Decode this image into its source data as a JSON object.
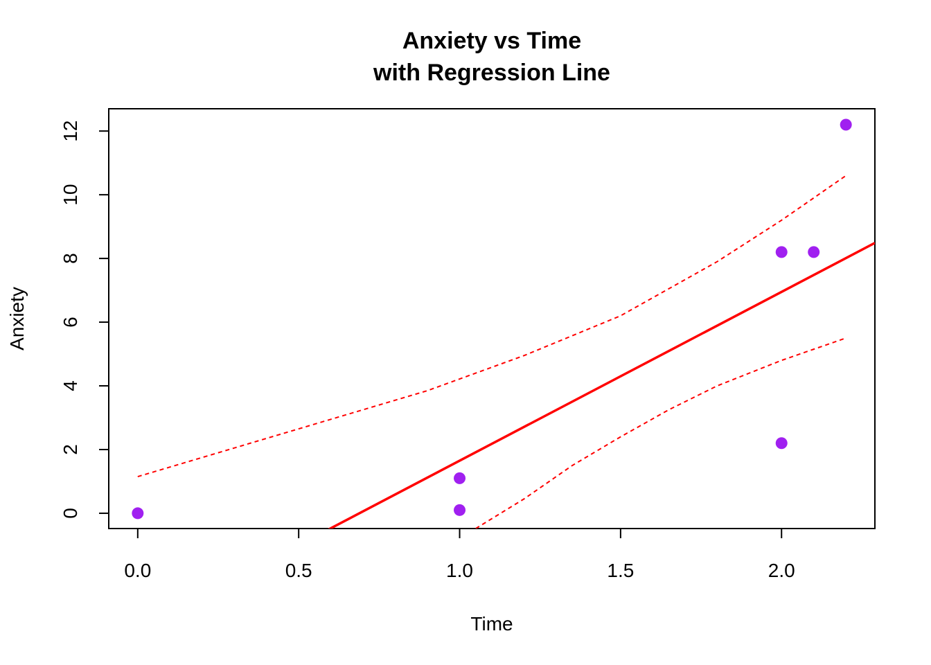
{
  "chart_data": {
    "type": "scatter",
    "title": [
      "Anxiety vs Time",
      "with Regression Line"
    ],
    "xlabel": "Time",
    "ylabel": "Anxiety",
    "xlim": [
      -0.09,
      2.29
    ],
    "ylim": [
      -0.48,
      12.7
    ],
    "x_ticks": [
      "0.0",
      "0.5",
      "1.0",
      "1.5",
      "2.0"
    ],
    "x_tick_values": [
      0,
      0.5,
      1.0,
      1.5,
      2.0
    ],
    "y_ticks": [
      "0",
      "2",
      "4",
      "6",
      "8",
      "10",
      "12"
    ],
    "y_tick_values": [
      0,
      2,
      4,
      6,
      8,
      10,
      12
    ],
    "grid": false,
    "points": {
      "color": "#a020f0",
      "x": [
        0.0,
        1.0,
        1.0,
        2.0,
        2.1,
        2.2,
        2.0
      ],
      "y": [
        0.0,
        1.1,
        0.1,
        8.2,
        8.2,
        12.2,
        2.2
      ]
    },
    "regression_line": {
      "color": "#ff0000",
      "intercept": -3.65,
      "slope": 5.3
    },
    "confidence_bands": {
      "color": "#ff0000",
      "style": "dashed",
      "upper": {
        "x": [
          0.0,
          0.3,
          0.6,
          0.9,
          1.2,
          1.5,
          1.8,
          2.0,
          2.2
        ],
        "y": [
          1.15,
          2.05,
          2.95,
          3.85,
          4.95,
          6.2,
          7.9,
          9.2,
          10.6
        ]
      },
      "lower": {
        "x": [
          1.05,
          1.2,
          1.35,
          1.5,
          1.65,
          1.8,
          2.0,
          2.2
        ],
        "y": [
          -0.48,
          0.45,
          1.5,
          2.4,
          3.25,
          4.0,
          4.8,
          5.5
        ]
      }
    }
  }
}
